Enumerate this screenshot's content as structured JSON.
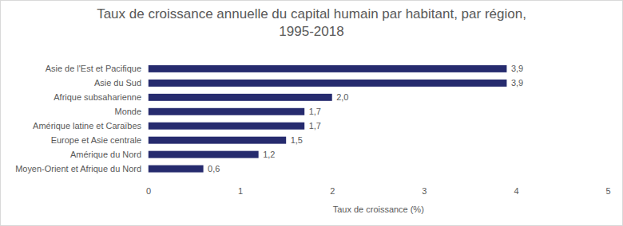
{
  "chart_data": {
    "type": "bar",
    "title": "Taux de croissance annuelle du capital humain par habitant, par région, 1995-2018",
    "x_label": "Taux de croissance (%)",
    "categories": [
      "Asie de l'Est et Pacifique",
      "Asie du Sud",
      "Afrique subsaharienne",
      "Monde",
      "Amérique latine et Caraïbes",
      "Europe et Asie centrale",
      "Amérique du Nord",
      "Moyen-Orient et Afrique du Nord"
    ],
    "values": [
      3.9,
      3.9,
      2.0,
      1.7,
      1.7,
      1.5,
      1.2,
      0.6
    ],
    "value_labels": [
      "3,9",
      "3,9",
      "2,0",
      "1,7",
      "1,7",
      "1,5",
      "1,2",
      "0,6"
    ],
    "color": "#262b6e",
    "orientation": "horizontal",
    "data_labels": true,
    "grid": false,
    "xlim": [
      0,
      5
    ],
    "xticks": [
      0,
      1,
      2,
      3,
      4,
      5
    ]
  }
}
